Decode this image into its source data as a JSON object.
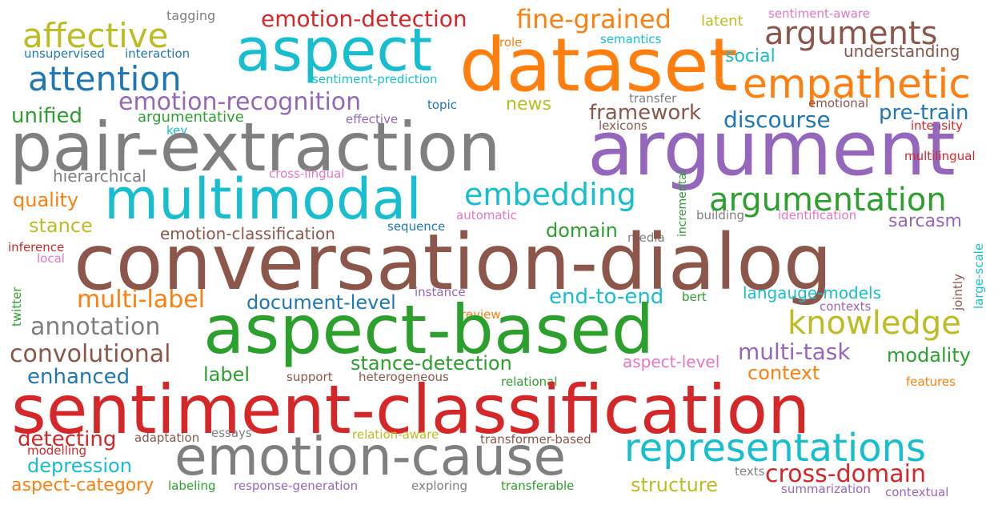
{
  "words": {
    "tagging": {
      "text": "tagging",
      "color": "#7f7f7f"
    },
    "emotion_detection": {
      "text": "emotion-detection",
      "color": "#d62728"
    },
    "fine_grained": {
      "text": "fine-grained",
      "color": "#ff7f0e"
    },
    "latent": {
      "text": "latent",
      "color": "#bcbd22"
    },
    "sentiment_aware": {
      "text": "sentiment-aware",
      "color": "#e377c2"
    },
    "affective": {
      "text": "affective",
      "color": "#bcbd22"
    },
    "aspect": {
      "text": "aspect",
      "color": "#17becf"
    },
    "dataset": {
      "text": "dataset",
      "color": "#ff7f0e"
    },
    "arguments": {
      "text": "arguments",
      "color": "#8c564b"
    },
    "unsupervised": {
      "text": "unsupervised",
      "color": "#1f77b4"
    },
    "interaction": {
      "text": "interaction",
      "color": "#1f77b4"
    },
    "role": {
      "text": "role",
      "color": "#ff7f0e"
    },
    "semantics": {
      "text": "semantics",
      "color": "#17becf"
    },
    "social": {
      "text": "social",
      "color": "#17becf"
    },
    "understanding": {
      "text": "understanding",
      "color": "#8c564b"
    },
    "attention": {
      "text": "attention",
      "color": "#1f77b4"
    },
    "sentiment_prediction": {
      "text": "sentiment-prediction",
      "color": "#17becf"
    },
    "empathetic": {
      "text": "empathetic",
      "color": "#ff7f0e"
    },
    "emotion_recognition": {
      "text": "emotion-recognition",
      "color": "#9467bd"
    },
    "news": {
      "text": "news",
      "color": "#bcbd22"
    },
    "transfer": {
      "text": "transfer",
      "color": "#7f7f7f"
    },
    "emotional": {
      "text": "emotional",
      "color": "#8c564b"
    },
    "unified": {
      "text": "unified",
      "color": "#2ca02c"
    },
    "topic": {
      "text": "topic",
      "color": "#1f77b4"
    },
    "framework": {
      "text": "framework",
      "color": "#8c564b"
    },
    "discourse": {
      "text": "discourse",
      "color": "#1f77b4"
    },
    "pre_train": {
      "text": "pre-train",
      "color": "#1f77b4"
    },
    "argumentative": {
      "text": "argumentative",
      "color": "#2ca02c"
    },
    "effective": {
      "text": "effective",
      "color": "#9467bd"
    },
    "key": {
      "text": "key",
      "color": "#17becf"
    },
    "lexicons": {
      "text": "lexicons",
      "color": "#8c564b"
    },
    "intensity": {
      "text": "intensity",
      "color": "#d62728"
    },
    "pair_extraction": {
      "text": "pair-extraction",
      "color": "#7f7f7f"
    },
    "argument": {
      "text": "argument",
      "color": "#9467bd"
    },
    "multilingual": {
      "text": "multilingual",
      "color": "#d62728"
    },
    "hierarchical": {
      "text": "hierarchical",
      "color": "#7f7f7f"
    },
    "cross_lingual": {
      "text": "cross-lingual",
      "color": "#e377c2"
    },
    "multimodal": {
      "text": "multimodal",
      "color": "#17becf"
    },
    "embedding": {
      "text": "embedding",
      "color": "#17becf"
    },
    "incremental": {
      "text": "incremental",
      "color": "#2ca02c"
    },
    "argumentation": {
      "text": "argumentation",
      "color": "#2ca02c"
    },
    "quality": {
      "text": "quality",
      "color": "#ff7f0e"
    },
    "automatic": {
      "text": "automatic",
      "color": "#e377c2"
    },
    "building": {
      "text": "building",
      "color": "#7f7f7f"
    },
    "identification": {
      "text": "identification",
      "color": "#e377c2"
    },
    "stance": {
      "text": "stance",
      "color": "#bcbd22"
    },
    "sarcasm": {
      "text": "sarcasm",
      "color": "#9467bd"
    },
    "emotion_classification": {
      "text": "emotion-classification",
      "color": "#8c564b"
    },
    "sequence": {
      "text": "sequence",
      "color": "#1f77b4"
    },
    "domain": {
      "text": "domain",
      "color": "#2ca02c"
    },
    "media": {
      "text": "media",
      "color": "#7f7f7f"
    },
    "inference": {
      "text": "inference",
      "color": "#d62728"
    },
    "large_scale": {
      "text": "large-scale",
      "color": "#17becf"
    },
    "local": {
      "text": "local",
      "color": "#e377c2"
    },
    "conversation_dialog": {
      "text": "conversation-dialog",
      "color": "#8c564b"
    },
    "jointly": {
      "text": "jointly",
      "color": "#8c564b"
    },
    "multi_label": {
      "text": "multi-label",
      "color": "#ff7f0e"
    },
    "instance": {
      "text": "instance",
      "color": "#9467bd"
    },
    "end_to_end": {
      "text": "end-to-end",
      "color": "#17becf"
    },
    "langauge_models": {
      "text": "langauge-models",
      "color": "#17becf"
    },
    "twitter": {
      "text": "twitter",
      "color": "#2ca02c"
    },
    "document_level": {
      "text": "document-level",
      "color": "#1f77b4"
    },
    "bert": {
      "text": "bert",
      "color": "#2ca02c"
    },
    "contexts": {
      "text": "contexts",
      "color": "#9467bd"
    },
    "review": {
      "text": "review",
      "color": "#ff7f0e"
    },
    "annotation": {
      "text": "annotation",
      "color": "#7f7f7f"
    },
    "aspect_based": {
      "text": "aspect-based",
      "color": "#2ca02c"
    },
    "knowledge": {
      "text": "knowledge",
      "color": "#bcbd22"
    },
    "convolutional": {
      "text": "convolutional",
      "color": "#8c564b"
    },
    "multi_task": {
      "text": "multi-task",
      "color": "#9467bd"
    },
    "modality": {
      "text": "modality",
      "color": "#2ca02c"
    },
    "stance_detection": {
      "text": "stance-detection",
      "color": "#2ca02c"
    },
    "aspect_level": {
      "text": "aspect-level",
      "color": "#e377c2"
    },
    "enhanced": {
      "text": "enhanced",
      "color": "#1f77b4"
    },
    "label": {
      "text": "label",
      "color": "#2ca02c"
    },
    "support": {
      "text": "support",
      "color": "#8c564b"
    },
    "heterogeneous": {
      "text": "heterogeneous",
      "color": "#8c564b"
    },
    "context": {
      "text": "context",
      "color": "#ff7f0e"
    },
    "relational": {
      "text": "relational",
      "color": "#2ca02c"
    },
    "features": {
      "text": "features",
      "color": "#ff7f0e"
    },
    "sentiment_classification": {
      "text": "sentiment-classification",
      "color": "#d62728"
    },
    "detecting": {
      "text": "detecting",
      "color": "#d62728"
    },
    "adaptation": {
      "text": "adaptation",
      "color": "#8c564b"
    },
    "essays": {
      "text": "essays",
      "color": "#7f7f7f"
    },
    "relation_aware": {
      "text": "relation-aware",
      "color": "#bcbd22"
    },
    "transformer_based": {
      "text": "transformer-based",
      "color": "#8c564b"
    },
    "modelling": {
      "text": "modelling",
      "color": "#d62728"
    },
    "emotion_cause": {
      "text": "emotion-cause",
      "color": "#7f7f7f"
    },
    "representations": {
      "text": "representations",
      "color": "#17becf"
    },
    "depression": {
      "text": "depression",
      "color": "#17becf"
    },
    "texts": {
      "text": "texts",
      "color": "#7f7f7f"
    },
    "cross_domain": {
      "text": "cross-domain",
      "color": "#d62728"
    },
    "aspect_category": {
      "text": "aspect-category",
      "color": "#ff7f0e"
    },
    "labeling": {
      "text": "labeling",
      "color": "#2ca02c"
    },
    "response_generation": {
      "text": "response-generation",
      "color": "#9467bd"
    },
    "exploring": {
      "text": "exploring",
      "color": "#7f7f7f"
    },
    "transferable": {
      "text": "transferable",
      "color": "#2ca02c"
    },
    "structure": {
      "text": "structure",
      "color": "#bcbd22"
    },
    "summarization": {
      "text": "summarization",
      "color": "#9467bd"
    },
    "contextual": {
      "text": "contextual",
      "color": "#9467bd"
    }
  }
}
